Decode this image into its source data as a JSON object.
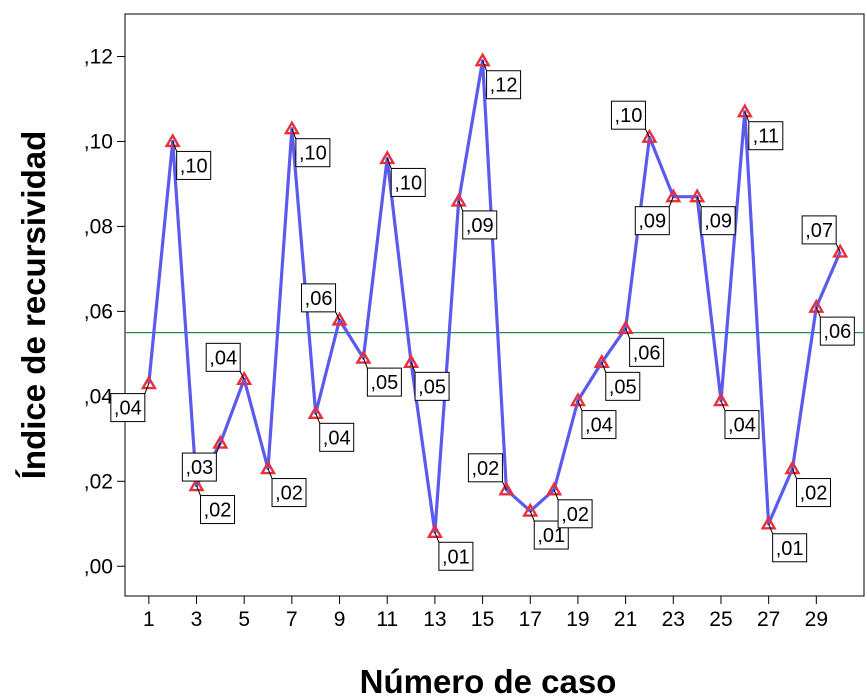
{
  "chart_data": {
    "type": "line",
    "xlabel": "Número de caso",
    "ylabel": "Índice de recursividad",
    "x": [
      1,
      2,
      3,
      4,
      5,
      6,
      7,
      8,
      9,
      10,
      11,
      12,
      13,
      14,
      15,
      16,
      17,
      18,
      19,
      20,
      21,
      22,
      23,
      24,
      25,
      26,
      27,
      28,
      29,
      30
    ],
    "values": [
      0.043,
      0.1,
      0.019,
      0.029,
      0.044,
      0.023,
      0.103,
      0.036,
      0.058,
      0.049,
      0.096,
      0.048,
      0.008,
      0.086,
      0.119,
      0.018,
      0.013,
      0.018,
      0.039,
      0.048,
      0.056,
      0.101,
      0.087,
      0.087,
      0.039,
      0.107,
      0.01,
      0.023,
      0.061,
      0.074
    ],
    "point_labels": [
      ",04",
      ",10",
      ",02",
      ",03",
      ",04",
      ",02",
      ",10",
      ",04",
      ",06",
      ",05",
      ",10",
      ",05",
      ",01",
      ",09",
      ",12",
      ",02",
      ",01",
      ",02",
      ",04",
      ",05",
      ",06",
      ",10",
      ",09",
      ",09",
      ",04",
      ",11",
      ",01",
      ",02",
      ",06",
      ",07"
    ],
    "reference_line": 0.055,
    "xlim": [
      0,
      31
    ],
    "ylim": [
      -0.007,
      0.13
    ],
    "x_ticks": [
      1,
      3,
      5,
      7,
      9,
      11,
      13,
      15,
      17,
      19,
      21,
      23,
      25,
      27,
      29
    ],
    "x_tick_labels": [
      "1",
      "3",
      "5",
      "7",
      "9",
      "11",
      "13",
      "15",
      "17",
      "19",
      "21",
      "23",
      "25",
      "27",
      "29"
    ],
    "y_ticks": [
      0.0,
      0.02,
      0.04,
      0.06,
      0.08,
      0.1,
      0.12
    ],
    "y_tick_labels": [
      ",00",
      ",02",
      ",04",
      ",06",
      ",08",
      ",10",
      ",12"
    ],
    "grid": false,
    "legend": "none",
    "colors": {
      "line": "#5a5aee",
      "marker": "#e8303a",
      "reference": "#2e8b4e"
    }
  }
}
